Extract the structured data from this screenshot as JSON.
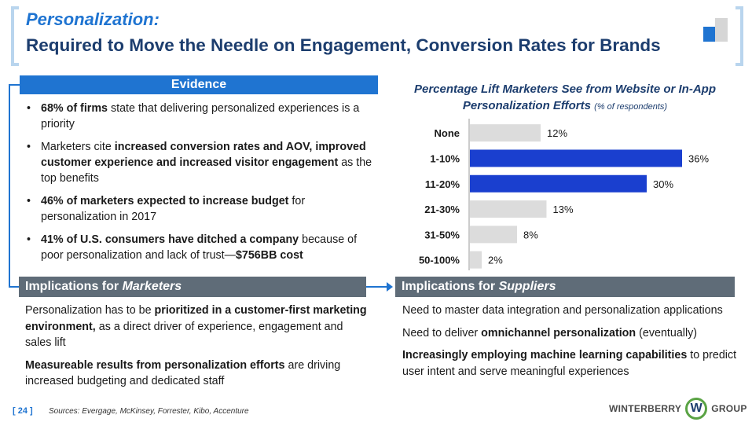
{
  "header": {
    "title_italic": "Personalization:",
    "title_main": "Required to Move the Needle on Engagement, Conversion Rates for Brands"
  },
  "evidence": {
    "heading": "Evidence",
    "items": [
      {
        "bold": "68% of firms",
        "rest": " state that delivering personalized experiences is a priority"
      },
      {
        "pre": "Marketers cite ",
        "bold": "increased conversion rates and AOV, improved customer experience and increased visitor engagement",
        "rest": " as the top benefits"
      },
      {
        "bold": "46% of marketers expected to increase budget",
        "rest": " for personalization in 2017"
      },
      {
        "bold": "41% of U.S. consumers have ditched a company",
        "rest": " because of poor personalization and lack of trust—",
        "bold2": "$756BB cost"
      }
    ]
  },
  "implications_marketers": {
    "heading_plain": "Implications for ",
    "heading_italic": "Marketers",
    "p1_pre": "Personalization has to be ",
    "p1_bold": "prioritized in a customer-first marketing environment,",
    "p1_rest": " as a direct driver of experience, engagement and sales lift",
    "p2_bold": "Measureable results from personalization efforts",
    "p2_rest": " are driving increased budgeting and dedicated staff"
  },
  "implications_suppliers": {
    "heading_plain": "Implications for ",
    "heading_italic": "Suppliers",
    "p1": "Need to master data integration and personalization applications",
    "p2_pre": "Need to deliver ",
    "p2_bold": "omnichannel personalization",
    "p2_rest": " (eventually)",
    "p3_bold": "Increasingly employing machine learning capabilities",
    "p3_rest": " to predict user intent and serve meaningful experiences"
  },
  "chart_data": {
    "type": "bar",
    "orientation": "horizontal",
    "title": "Percentage Lift Marketers See from Website or In-App Personalization Efforts",
    "subtitle": "(% of respondents)",
    "categories": [
      "None",
      "1-10%",
      "11-20%",
      "21-30%",
      "31-50%",
      "50-100%"
    ],
    "values": [
      12,
      36,
      30,
      13,
      8,
      2
    ],
    "value_labels": [
      "12%",
      "36%",
      "30%",
      "13%",
      "8%",
      "2%"
    ],
    "highlight": [
      false,
      true,
      true,
      false,
      false,
      false
    ],
    "xlim": [
      0,
      40
    ],
    "grid": false,
    "colors": {
      "highlight": "#1a3fcf",
      "normal": "#dcdcdc"
    }
  },
  "footer": {
    "page_number": "[ 24 ]",
    "sources": "Sources: Evergage, McKinsey, Forrester, Kibo, Accenture",
    "logo_left": "WINTERBERRY",
    "logo_mark": "W",
    "logo_right": "GROUP"
  }
}
